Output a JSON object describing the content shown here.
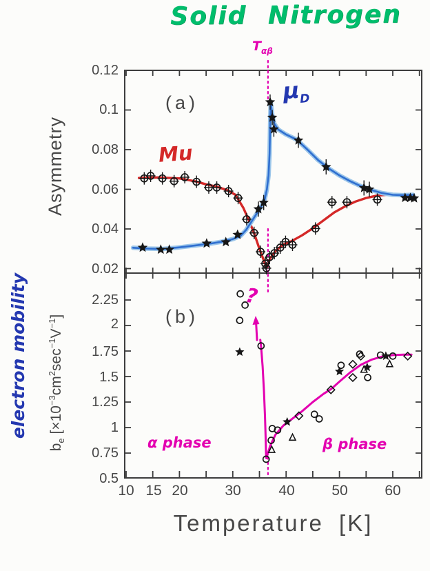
{
  "title": "Solid Nitrogen",
  "annotations": {
    "t_alpha_beta": {
      "main": "T",
      "sub": "αβ"
    },
    "panel_a_tag": "(a)",
    "panel_b_tag": "(b)",
    "mu_label": "Mu",
    "mu_d": {
      "main": "μ",
      "sub": "D"
    },
    "question": "?",
    "alpha_phase": "α phase",
    "beta_phase": "β phase"
  },
  "axes": {
    "x": {
      "title": "Temperature [K]",
      "ticklabels": [
        "10",
        "15",
        "20",
        "30",
        "40",
        "50",
        "60"
      ],
      "tick_values": [
        10,
        15,
        20,
        30,
        40,
        50,
        60
      ],
      "minor_tick_step": 5,
      "range": [
        9.7,
        65.5
      ]
    },
    "y_a": {
      "title": "Asymmetry",
      "ticklabels": [
        "0.12",
        "0.1",
        "0.08",
        "0.06",
        "0.04",
        "0.02"
      ],
      "tick_values": [
        0.12,
        0.1,
        0.08,
        0.06,
        0.04,
        0.02
      ],
      "range": [
        0.0175,
        0.12
      ]
    },
    "y_b": {
      "title_handwritten": "electron mobility",
      "unit_parts": {
        "base": "b",
        "base_sub": "e",
        "open": " [×10",
        "exp": "−3",
        "u1": "cm",
        "u1_sup": "2",
        "u2": "sec",
        "u2_sup": "−1",
        "u3": "V",
        "u3_sup": "−1",
        "close": "]"
      },
      "ticklabels": [
        "2.25",
        "2",
        "1.75",
        "1.5",
        "1.25",
        "1",
        "0.75",
        "0.5"
      ],
      "tick_values": [
        2.25,
        2.0,
        1.75,
        1.5,
        1.25,
        1.0,
        0.75,
        0.5
      ],
      "range": [
        0.5,
        2.505
      ]
    }
  },
  "colors": {
    "title_green": "#00bd6c",
    "magenta": "#e300b0",
    "red_curve": "#d42828",
    "blue_curve_core": "#2f6fd0",
    "blue_curve_halo": "#9cc6ea",
    "handwriting_blue": "#2438b0",
    "marker_black": "#161616",
    "frame_gray": "#3d3d3d"
  },
  "chart_data": [
    {
      "panel": "a",
      "type": "scatter",
      "tag": "(a)",
      "xlabel": "Temperature [K]",
      "ylabel": "Asymmetry",
      "xlim": [
        9.7,
        65.5
      ],
      "ylim": [
        0.0175,
        0.12
      ],
      "transition_line_K": 36.6,
      "series": [
        {
          "name": "Mu",
          "marker": "circle",
          "errorbars": true,
          "color": "#d42828",
          "points": [
            [
              13.4,
              0.0655
            ],
            [
              14.6,
              0.0668
            ],
            [
              16.8,
              0.0655
            ],
            [
              19.0,
              0.0641
            ],
            [
              21.0,
              0.0661
            ],
            [
              23.2,
              0.0638
            ],
            [
              25.5,
              0.0609
            ],
            [
              27.0,
              0.0609
            ],
            [
              29.2,
              0.0591
            ],
            [
              31.0,
              0.0556
            ],
            [
              32.6,
              0.0449
            ],
            [
              34.0,
              0.038
            ],
            [
              35.2,
              0.0285
            ],
            [
              36.1,
              0.0225
            ],
            [
              36.3,
              0.0202
            ],
            [
              36.9,
              0.0258
            ],
            [
              37.8,
              0.0278
            ],
            [
              38.9,
              0.0306
            ],
            [
              39.9,
              0.0335
            ],
            [
              41.2,
              0.032
            ],
            [
              45.5,
              0.0402
            ],
            [
              48.6,
              0.0535
            ],
            [
              51.4,
              0.0535
            ],
            [
              57.1,
              0.0548
            ]
          ],
          "curve": [
            [
              12.4,
              0.0657
            ],
            [
              16,
              0.066
            ],
            [
              20,
              0.0655
            ],
            [
              23,
              0.064
            ],
            [
              25,
              0.0625
            ],
            [
              27,
              0.0613
            ],
            [
              29,
              0.0595
            ],
            [
              30.5,
              0.0572
            ],
            [
              32,
              0.0505
            ],
            [
              33,
              0.0445
            ],
            [
              34,
              0.0378
            ],
            [
              35,
              0.03
            ],
            [
              36,
              0.0228
            ],
            [
              36.4,
              0.0205
            ],
            [
              37,
              0.0252
            ],
            [
              38,
              0.0288
            ],
            [
              39.5,
              0.0322
            ],
            [
              41,
              0.0338
            ],
            [
              43,
              0.0368
            ],
            [
              45,
              0.0403
            ],
            [
              47,
              0.0443
            ],
            [
              49,
              0.0483
            ],
            [
              51,
              0.0513
            ],
            [
              53,
              0.0538
            ],
            [
              55,
              0.0556
            ],
            [
              57,
              0.0568
            ],
            [
              59,
              0.0573
            ],
            [
              60.5,
              0.0575
            ]
          ]
        },
        {
          "name": "μD",
          "marker": "star",
          "errorbars": true,
          "color": "#2f6fd0",
          "points": [
            [
              13.1,
              0.0306
            ],
            [
              16.5,
              0.0296
            ],
            [
              18.1,
              0.0296
            ],
            [
              25.1,
              0.0327
            ],
            [
              28.7,
              0.0334
            ],
            [
              30.9,
              0.0371
            ],
            [
              34.8,
              0.05
            ],
            [
              35.8,
              0.0533
            ],
            [
              37.0,
              0.104
            ],
            [
              37.4,
              0.0962
            ],
            [
              37.7,
              0.0903
            ],
            [
              42.3,
              0.0847
            ],
            [
              47.5,
              0.0713
            ],
            [
              54.6,
              0.0607
            ],
            [
              55.6,
              0.06
            ],
            [
              62.3,
              0.0557
            ],
            [
              63.3,
              0.0557
            ],
            [
              64.0,
              0.0555
            ]
          ],
          "curve": [
            [
              11.3,
              0.0305
            ],
            [
              14,
              0.0301
            ],
            [
              17,
              0.0299
            ],
            [
              20,
              0.0307
            ],
            [
              23,
              0.0317
            ],
            [
              26,
              0.0327
            ],
            [
              28,
              0.0336
            ],
            [
              30,
              0.0349
            ],
            [
              31.5,
              0.0366
            ],
            [
              32.5,
              0.0395
            ],
            [
              33.5,
              0.0437
            ],
            [
              34.5,
              0.0478
            ],
            [
              35.3,
              0.0512
            ],
            [
              36,
              0.055
            ],
            [
              36.4,
              0.06
            ],
            [
              36.7,
              0.067
            ],
            [
              36.9,
              0.078
            ],
            [
              37.0,
              0.092
            ],
            [
              37.1,
              0.104
            ],
            [
              37.4,
              0.0975
            ],
            [
              37.8,
              0.093
            ],
            [
              38.5,
              0.0902
            ],
            [
              40,
              0.0876
            ],
            [
              42,
              0.085
            ],
            [
              44,
              0.08
            ],
            [
              46,
              0.0747
            ],
            [
              48,
              0.0705
            ],
            [
              50,
              0.067
            ],
            [
              52,
              0.0641
            ],
            [
              54,
              0.0616
            ],
            [
              56,
              0.0596
            ],
            [
              58,
              0.0581
            ],
            [
              60,
              0.0572
            ],
            [
              62,
              0.057
            ],
            [
              63.8,
              0.0572
            ]
          ]
        }
      ]
    },
    {
      "panel": "b",
      "type": "scatter",
      "tag": "(b)",
      "xlabel": "Temperature [K]",
      "ylabel": "be [×10−3 cm2 sec−1 V−1]",
      "ylabel_handwritten": "electron mobility",
      "xlim": [
        9.7,
        65.5
      ],
      "ylim": [
        0.5,
        2.505
      ],
      "transition_line_K": 36.6,
      "phase_labels": [
        "α phase",
        "β phase"
      ],
      "series": [
        {
          "name": "circles",
          "marker": "circle",
          "errorbars": false,
          "color": "#161616",
          "points": [
            [
              31.4,
              2.31
            ],
            [
              32.3,
              2.2
            ],
            [
              31.3,
              2.05
            ],
            [
              35.3,
              1.8
            ],
            [
              36.25,
              0.69
            ],
            [
              37.2,
              0.875
            ],
            [
              37.4,
              0.99
            ],
            [
              38.4,
              0.975
            ],
            [
              45.3,
              1.13
            ],
            [
              46.2,
              1.085
            ],
            [
              50.3,
              1.61
            ],
            [
              55.3,
              1.49
            ],
            [
              53.8,
              1.72
            ],
            [
              57.7,
              1.71
            ],
            [
              60.0,
              1.7
            ]
          ]
        },
        {
          "name": "stars",
          "marker": "star",
          "errorbars": false,
          "color": "#161616",
          "points": [
            [
              31.3,
              1.74
            ],
            [
              40.2,
              1.055
            ],
            [
              50.0,
              1.55
            ],
            [
              55.2,
              1.59
            ],
            [
              58.7,
              1.7
            ]
          ]
        },
        {
          "name": "diamonds",
          "marker": "diamond",
          "errorbars": false,
          "color": "#161616",
          "points": [
            [
              42.4,
              1.115
            ],
            [
              48.4,
              1.37
            ],
            [
              52.5,
              1.62
            ],
            [
              52.5,
              1.49
            ],
            [
              54.0,
              1.7
            ],
            [
              62.8,
              1.7
            ]
          ]
        },
        {
          "name": "triangles",
          "marker": "triangle",
          "errorbars": false,
          "color": "#161616",
          "points": [
            [
              37.3,
              0.78
            ],
            [
              41.2,
              0.9
            ],
            [
              54.6,
              1.565
            ],
            [
              59.4,
              1.62
            ]
          ]
        },
        {
          "name": "alpha-branch-fit",
          "marker": "none",
          "color": "#e300b0",
          "curve": [
            [
              35.15,
              1.86
            ],
            [
              35.3,
              1.8
            ],
            [
              35.6,
              1.6
            ],
            [
              35.85,
              1.35
            ],
            [
              36.05,
              1.1
            ],
            [
              36.15,
              0.92
            ],
            [
              36.25,
              0.71
            ]
          ]
        },
        {
          "name": "beta-branch-fit",
          "marker": "none",
          "color": "#e300b0",
          "curve": [
            [
              36.3,
              0.7
            ],
            [
              37,
              0.82
            ],
            [
              38,
              0.93
            ],
            [
              39.5,
              1.02
            ],
            [
              41,
              1.08
            ],
            [
              43,
              1.16
            ],
            [
              45,
              1.25
            ],
            [
              47,
              1.33
            ],
            [
              48.5,
              1.38
            ],
            [
              50,
              1.45
            ],
            [
              52,
              1.54
            ],
            [
              54,
              1.615
            ],
            [
              56,
              1.665
            ],
            [
              58,
              1.695
            ],
            [
              60,
              1.71
            ],
            [
              62,
              1.715
            ],
            [
              63.5,
              1.715
            ]
          ]
        }
      ]
    }
  ]
}
